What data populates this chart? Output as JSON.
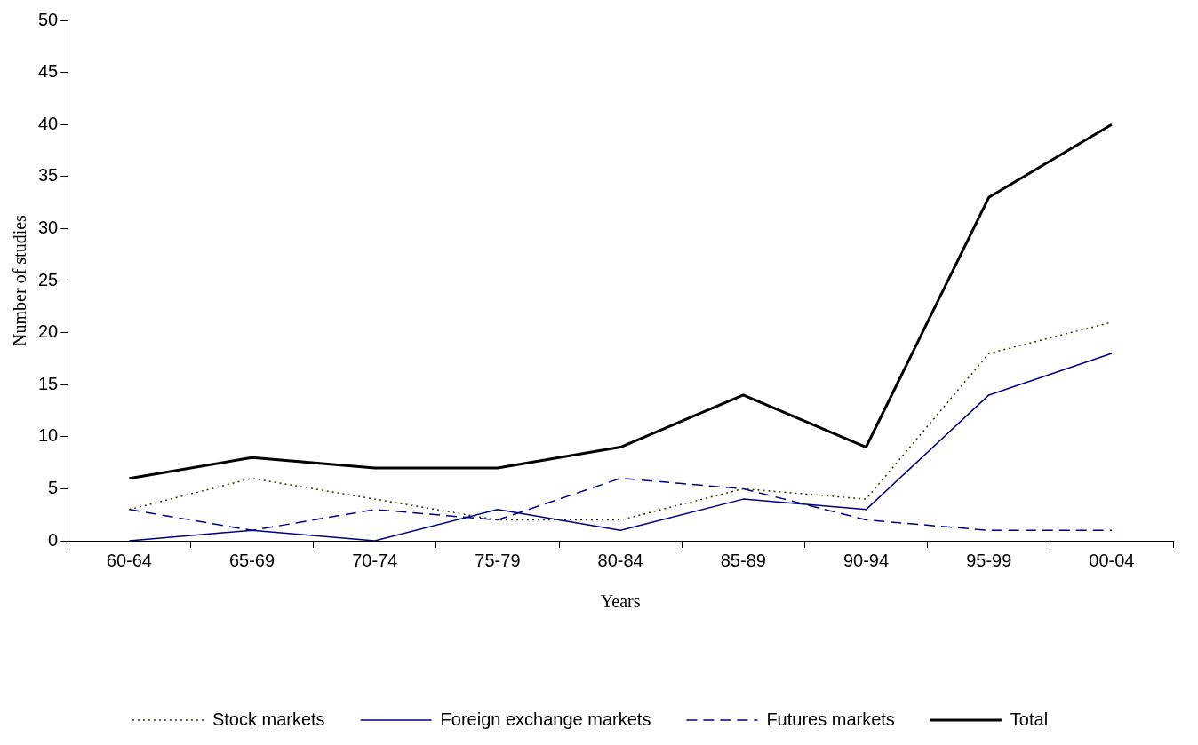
{
  "chart_data": {
    "type": "line",
    "xlabel": "Years",
    "ylabel": "Number of studies",
    "categories": [
      "60-64",
      "65-69",
      "70-74",
      "75-79",
      "80-84",
      "85-89",
      "90-94",
      "95-99",
      "00-04"
    ],
    "series": [
      {
        "name": "Stock markets",
        "color": "#333300",
        "line_style": "dotted",
        "values": [
          3,
          6,
          4,
          2,
          2,
          5,
          4,
          18,
          21
        ]
      },
      {
        "name": "Foreign exchange markets",
        "color": "#000080",
        "line_style": "solid",
        "values": [
          0,
          1,
          0,
          3,
          1,
          4,
          3,
          14,
          18
        ]
      },
      {
        "name": "Futures markets",
        "color": "#000080",
        "line_style": "dashed",
        "values": [
          3,
          1,
          3,
          2,
          6,
          5,
          2,
          1,
          1
        ]
      },
      {
        "name": "Total",
        "color": "#000000",
        "line_style": "solid",
        "values": [
          6,
          8,
          7,
          7,
          9,
          14,
          9,
          33,
          40
        ]
      }
    ],
    "ylim": [
      0,
      50
    ],
    "yticks": [
      0,
      5,
      10,
      15,
      20,
      25,
      30,
      35,
      40,
      45,
      50
    ],
    "marker": "none",
    "legend": "bottom"
  }
}
